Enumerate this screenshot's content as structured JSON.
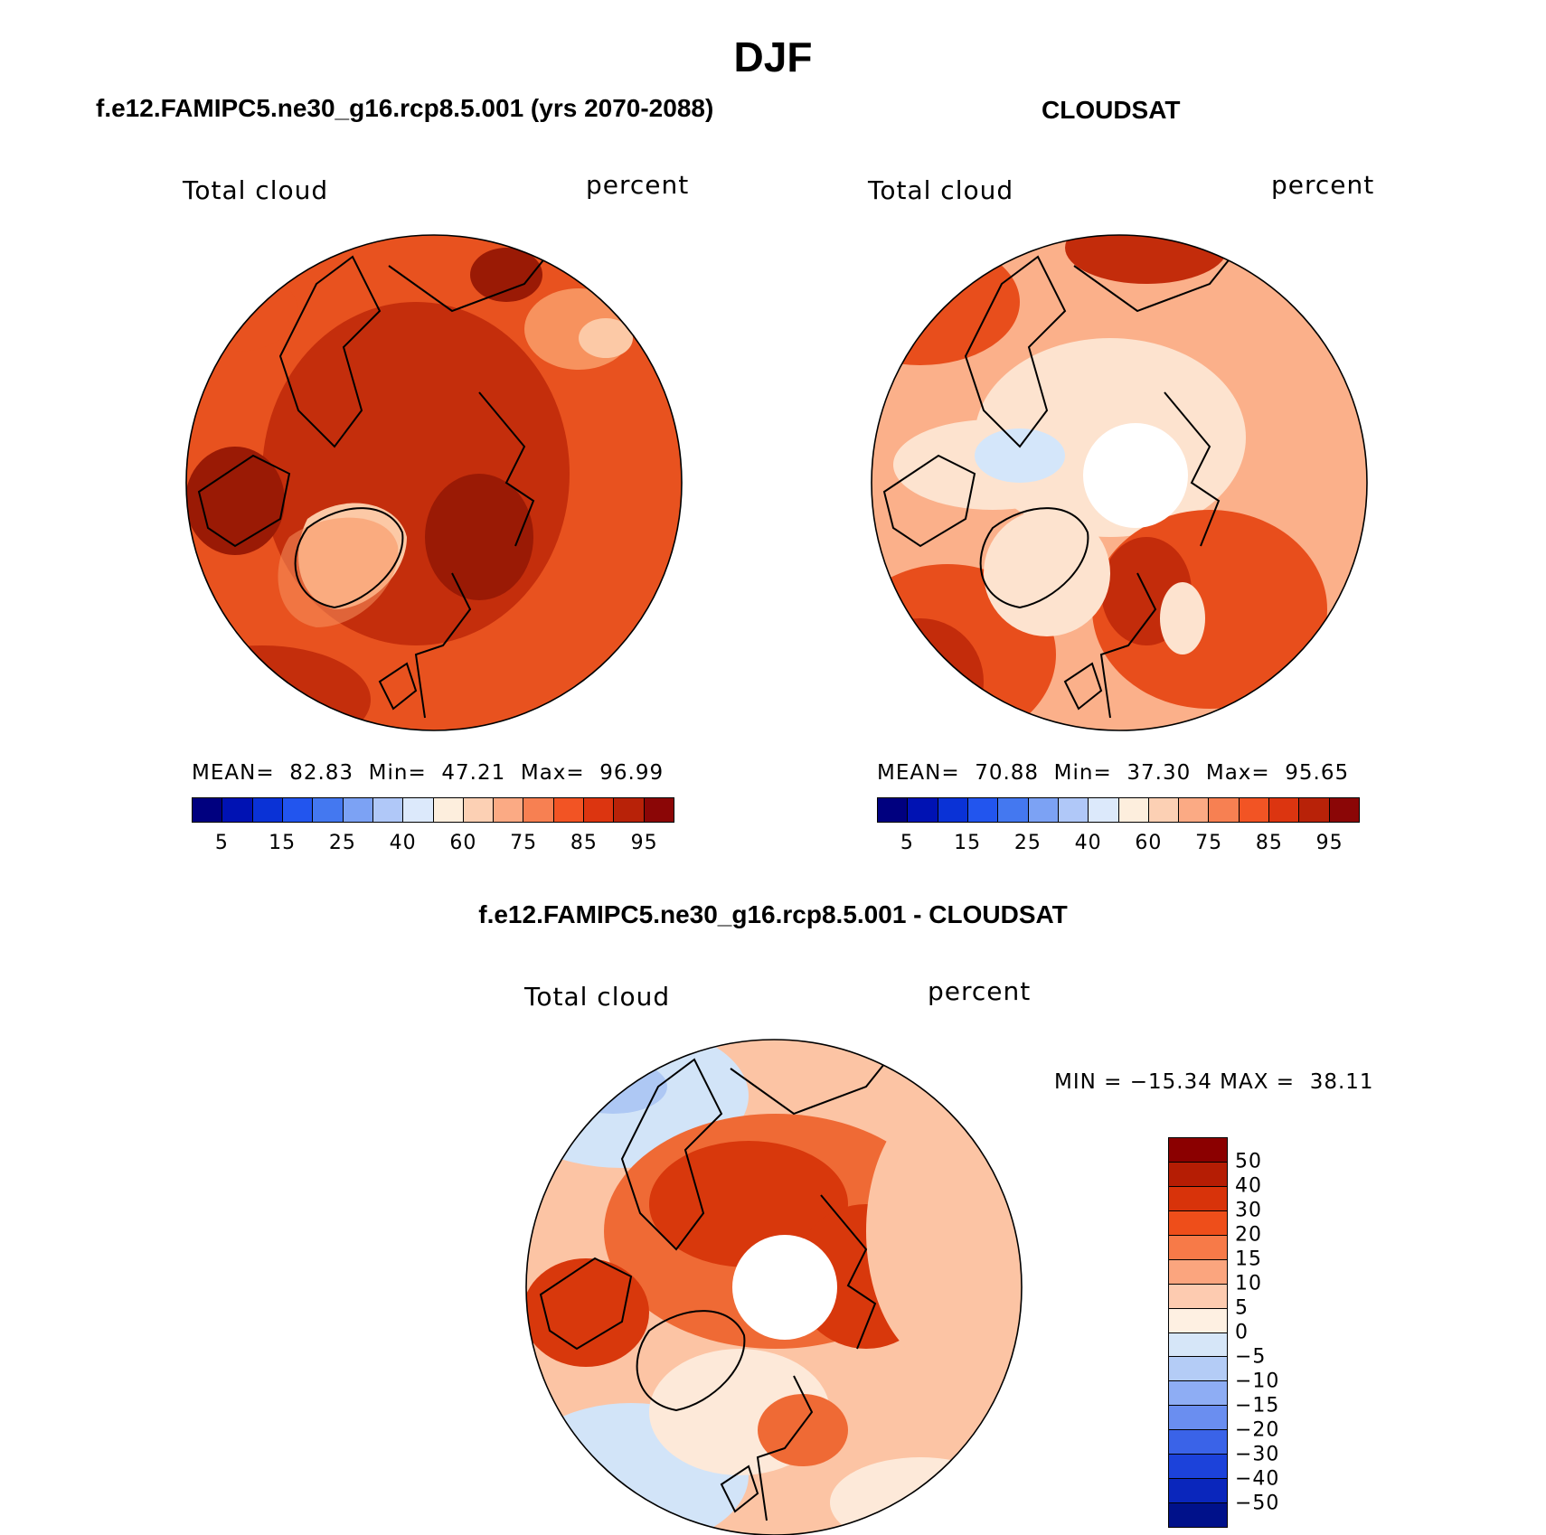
{
  "title": "DJF",
  "panels": {
    "model": {
      "title": "f.e12.FAMIPC5.ne30_g16.rcp8.5.001 (yrs 2070-2088)",
      "left_label": "Total cloud",
      "right_label": "percent",
      "stats": "MEAN=  82.83  Min=  47.21  Max=  96.99"
    },
    "obs": {
      "title": "CLOUDSAT",
      "left_label": "Total cloud",
      "right_label": "percent",
      "stats": "MEAN=  70.88  Min=  37.30  Max=  95.65"
    },
    "diff": {
      "title": "f.e12.FAMIPC5.ne30_g16.rcp8.5.001 - CLOUDSAT",
      "left_label": "Total cloud",
      "right_label": "percent",
      "stats": "MIN = −15.34 MAX =  38.11"
    }
  },
  "colorbar_abs": {
    "colors": [
      "#00007f",
      "#0012b3",
      "#0a32d6",
      "#2255ee",
      "#4478f0",
      "#7ca2f4",
      "#b0c8f8",
      "#dce9fb",
      "#fdeedd",
      "#fcd0b4",
      "#fbaa84",
      "#f78052",
      "#f25424",
      "#dc3510",
      "#b82208",
      "#8b0606"
    ],
    "tick_labels": [
      "5",
      "15",
      "25",
      "40",
      "60",
      "75",
      "85",
      "95"
    ]
  },
  "colorbar_diff": {
    "colors": [
      "#8b0000",
      "#b51d04",
      "#d8330a",
      "#ee4e1a",
      "#f77a48",
      "#fba57e",
      "#fdcbb0",
      "#fef0e2",
      "#d6e6f8",
      "#b4ccf6",
      "#8eadf4",
      "#6a8ef0",
      "#3a63e8",
      "#1c42da",
      "#0a26bc",
      "#00118a"
    ],
    "tick_labels": [
      "50",
      "40",
      "30",
      "20",
      "15",
      "10",
      "5",
      "0",
      "−5",
      "−10",
      "−15",
      "−20",
      "−30",
      "−40",
      "−50"
    ]
  },
  "map_colors": {
    "model_base": "#e8521f",
    "model_dark": "#c42e0c",
    "model_darker": "#9a1a05",
    "model_light": "#f7925e",
    "model_pale": "#fcc9a6",
    "obs_base": "#fbb08a",
    "obs_dark": "#e84e1c",
    "obs_darker": "#c32c0b",
    "obs_pale": "#fde3cf",
    "obs_blue": "#d4e6fa",
    "diff_base": "#fcc4a4",
    "diff_red": "#ef6a35",
    "diff_dark": "#d8380c",
    "diff_pale": "#fde9d9",
    "diff_blue": "#d2e4f8",
    "diff_blue2": "#aec8f4",
    "coast": "#000000"
  }
}
